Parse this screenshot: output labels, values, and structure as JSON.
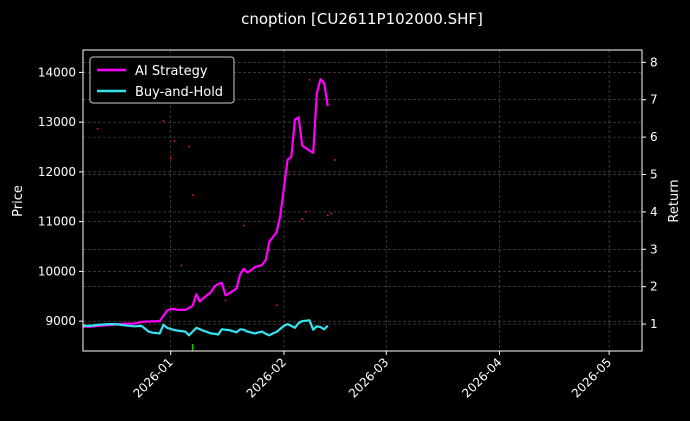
{
  "chart_data": {
    "type": "line",
    "title": "cnoption [CU2611P102000.SHF]",
    "ylabel": "Price",
    "y2label": "Return",
    "x_range": [
      "2025-12-08",
      "2026-05-10"
    ],
    "ylim_price": [
      8400,
      14450
    ],
    "ylim_return": [
      0.28,
      8.33
    ],
    "x_ticks": [
      "2026-01",
      "2026-02",
      "2026-03",
      "2026-04",
      "2026-05"
    ],
    "y_ticks": [
      9000,
      10000,
      11000,
      12000,
      13000,
      14000
    ],
    "y2_ticks": [
      1,
      2,
      3,
      4,
      5,
      6,
      7,
      8
    ],
    "grid": true,
    "legend_position": "upper-left",
    "colors": {
      "background": "#000000",
      "ai": "#ff00ff",
      "bh": "#33e5f2",
      "grid": "#555555",
      "scatter": "#ff0066",
      "marker": "#00cc00"
    },
    "series": [
      {
        "name": "AI Strategy",
        "x": [
          "2025-12-08",
          "2025-12-10",
          "2025-12-12",
          "2025-12-15",
          "2025-12-17",
          "2025-12-19",
          "2025-12-22",
          "2025-12-24",
          "2025-12-26",
          "2025-12-29",
          "2025-12-31",
          "2026-01-01",
          "2026-01-02",
          "2026-01-03",
          "2026-01-05",
          "2026-01-07",
          "2026-01-08",
          "2026-01-09",
          "2026-01-10",
          "2026-01-12",
          "2026-01-13",
          "2026-01-14",
          "2026-01-15",
          "2026-01-16",
          "2026-01-17",
          "2026-01-19",
          "2026-01-20",
          "2026-01-21",
          "2026-01-22",
          "2026-01-23",
          "2026-01-24",
          "2026-01-26",
          "2026-01-27",
          "2026-01-28",
          "2026-01-30",
          "2026-01-31",
          "2026-02-02",
          "2026-02-03",
          "2026-02-04",
          "2026-02-05",
          "2026-02-06",
          "2026-02-08",
          "2026-02-09",
          "2026-02-10",
          "2026-02-11",
          "2026-02-12",
          "2026-02-13"
        ],
        "values": [
          0.93,
          0.93,
          0.95,
          0.97,
          0.99,
          1.01,
          1.01,
          1.06,
          1.07,
          1.08,
          1.36,
          1.4,
          1.4,
          1.38,
          1.38,
          1.49,
          1.8,
          1.6,
          1.7,
          1.85,
          2.01,
          2.07,
          2.1,
          1.77,
          1.82,
          1.95,
          2.33,
          2.48,
          2.38,
          2.44,
          2.52,
          2.58,
          2.71,
          3.2,
          3.46,
          3.9,
          5.4,
          5.47,
          6.47,
          6.53,
          5.77,
          5.64,
          5.58,
          7.17,
          7.55,
          7.45,
          6.83
        ]
      },
      {
        "name": "Buy-and-Hold",
        "x": [
          "2025-12-08",
          "2025-12-10",
          "2025-12-12",
          "2025-12-15",
          "2025-12-17",
          "2025-12-19",
          "2025-12-22",
          "2025-12-24",
          "2025-12-26",
          "2025-12-27",
          "2025-12-29",
          "2025-12-30",
          "2025-12-31",
          "2026-01-02",
          "2026-01-05",
          "2026-01-06",
          "2026-01-07",
          "2026-01-08",
          "2026-01-10",
          "2026-01-12",
          "2026-01-13",
          "2026-01-14",
          "2026-01-15",
          "2026-01-17",
          "2026-01-19",
          "2026-01-20",
          "2026-01-21",
          "2026-01-22",
          "2026-01-24",
          "2026-01-26",
          "2026-01-27",
          "2026-01-28",
          "2026-01-29",
          "2026-01-30",
          "2026-02-01",
          "2026-02-02",
          "2026-02-03",
          "2026-02-04",
          "2026-02-05",
          "2026-02-06",
          "2026-02-08",
          "2026-02-09",
          "2026-02-10",
          "2026-02-11",
          "2026-02-12",
          "2026-02-13"
        ],
        "values": [
          0.96,
          0.95,
          0.98,
          1.0,
          1.0,
          0.97,
          0.94,
          0.95,
          0.8,
          0.77,
          0.75,
          0.98,
          0.9,
          0.84,
          0.8,
          0.7,
          0.8,
          0.9,
          0.82,
          0.75,
          0.74,
          0.72,
          0.86,
          0.84,
          0.78,
          0.86,
          0.85,
          0.8,
          0.75,
          0.8,
          0.74,
          0.7,
          0.75,
          0.79,
          0.95,
          1.0,
          0.95,
          0.9,
          1.03,
          1.08,
          1.1,
          0.85,
          0.94,
          0.92,
          0.86,
          0.96
        ]
      }
    ],
    "scatter_points": [
      {
        "x": "2025-12-12",
        "y": 12870
      },
      {
        "x": "2025-12-30",
        "y": 13030
      },
      {
        "x": "2026-01-01",
        "y": 12270
      },
      {
        "x": "2026-01-02",
        "y": 12620
      },
      {
        "x": "2026-01-04",
        "y": 10120
      },
      {
        "x": "2026-01-06",
        "y": 12510
      },
      {
        "x": "2026-01-07",
        "y": 11530
      },
      {
        "x": "2026-01-16",
        "y": 9420
      },
      {
        "x": "2026-01-21",
        "y": 10920
      },
      {
        "x": "2026-01-28",
        "y": 10420
      },
      {
        "x": "2026-01-30",
        "y": 9320
      },
      {
        "x": "2026-02-06",
        "y": 11050
      },
      {
        "x": "2026-02-07",
        "y": 11200
      },
      {
        "x": "2026-02-08",
        "y": 13850
      },
      {
        "x": "2026-02-13",
        "y": 11130
      },
      {
        "x": "2026-02-14",
        "y": 11160
      },
      {
        "x": "2026-02-15",
        "y": 12240
      }
    ],
    "markers": [
      {
        "x": "2026-01-07",
        "y_from": 8400,
        "y_to": 8540
      }
    ],
    "legend": [
      "AI Strategy",
      "Buy-and-Hold"
    ]
  }
}
